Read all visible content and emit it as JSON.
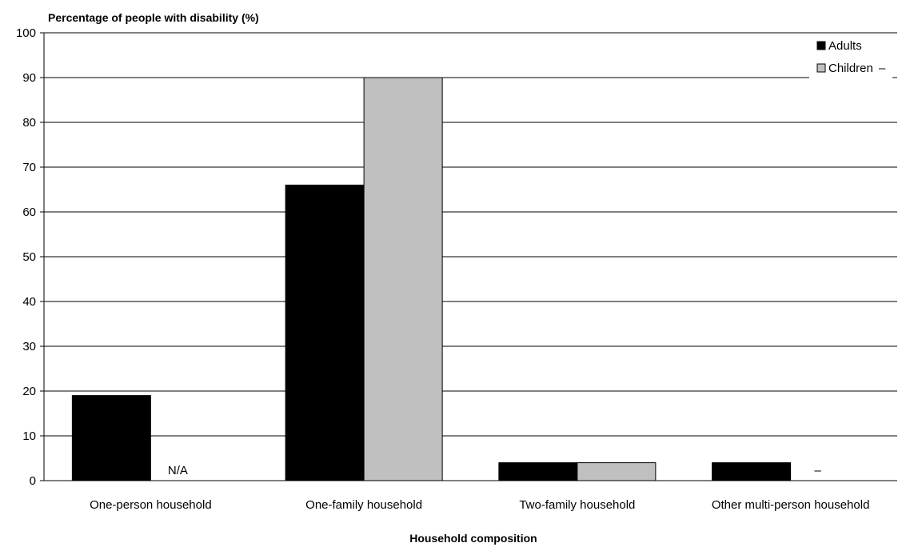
{
  "chart_data": {
    "type": "bar",
    "ylabel": "Percentage of people with disability (%)",
    "xlabel": "Household composition",
    "categories": [
      "One-person household",
      "One-family household",
      "Two-family household",
      "Other multi-person household"
    ],
    "series": [
      {
        "name": "Adults",
        "color": "#000000",
        "values": [
          19,
          66,
          4,
          4
        ]
      },
      {
        "name": "Children",
        "color": "#c0c0c0",
        "values": [
          null,
          90,
          4,
          null
        ]
      }
    ],
    "value_notes": [
      {
        "category": "One-person household",
        "series": "Children",
        "text": "N/A"
      },
      {
        "category": "Other multi-person household",
        "series": "Children",
        "text": "–"
      }
    ],
    "legend_extra_text": "–",
    "ylim": [
      0,
      100
    ],
    "yticks": [
      0,
      10,
      20,
      30,
      40,
      50,
      60,
      70,
      80,
      90,
      100
    ],
    "grid": true,
    "legend_position": "top-right"
  }
}
